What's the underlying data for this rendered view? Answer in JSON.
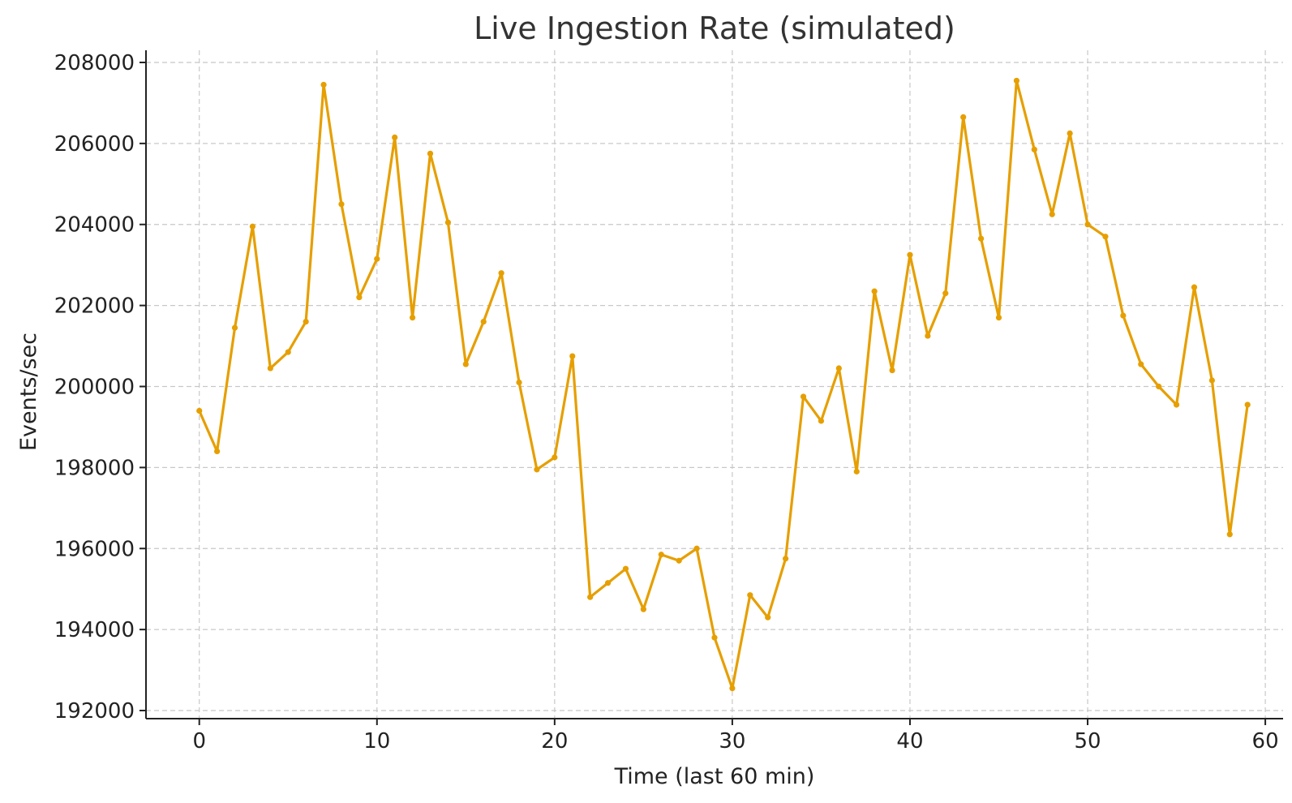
{
  "chart_data": {
    "type": "line",
    "title": "Live Ingestion Rate (simulated)",
    "xlabel": "Time (last 60 min)",
    "ylabel": "Events/sec",
    "xlim": [
      -3,
      61
    ],
    "ylim": [
      191800,
      208300
    ],
    "xticks": [
      0,
      10,
      20,
      30,
      40,
      50,
      60
    ],
    "yticks": [
      192000,
      194000,
      196000,
      198000,
      200000,
      202000,
      204000,
      206000,
      208000
    ],
    "grid": true,
    "color": "#e69f00",
    "series": [
      {
        "x": [
          0,
          1,
          2,
          3,
          4,
          5,
          6,
          7,
          8,
          9,
          10,
          11,
          12,
          13,
          14,
          15,
          16,
          17,
          18,
          19,
          20,
          21,
          22,
          23,
          24,
          25,
          26,
          27,
          28,
          29,
          30,
          31,
          32,
          33,
          34,
          35,
          36,
          37,
          38,
          39,
          40,
          41,
          42,
          43,
          44,
          45,
          46,
          47,
          48,
          49,
          50,
          51,
          52,
          53,
          54,
          55,
          56,
          57,
          58,
          59
        ],
        "values": [
          199400,
          198400,
          201450,
          203950,
          200450,
          200850,
          201600,
          207450,
          204500,
          202200,
          203150,
          206150,
          201700,
          205750,
          204050,
          200550,
          201600,
          202800,
          200100,
          197950,
          198250,
          200750,
          194800,
          195150,
          195500,
          194500,
          195850,
          195700,
          196000,
          193800,
          192550,
          194850,
          194300,
          195750,
          199750,
          199150,
          200450,
          197900,
          202350,
          200400,
          203250,
          201250,
          202300,
          206650,
          203650,
          201700,
          207550,
          205850,
          204250,
          206250,
          204000,
          203700,
          201750,
          200550,
          200000,
          199550,
          202450,
          200150,
          196350,
          199550
        ]
      }
    ]
  }
}
